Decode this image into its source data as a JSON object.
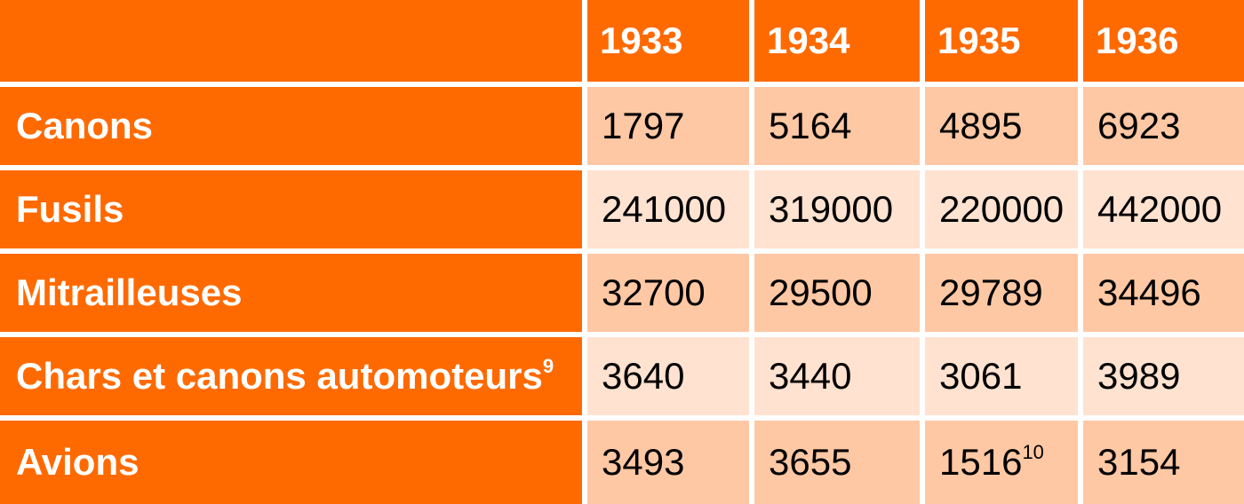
{
  "table": {
    "columns": [
      "",
      "1933",
      "1934",
      "1935",
      "1936"
    ],
    "rows": [
      {
        "label": "Canons",
        "label_sup": "",
        "values": [
          "1797",
          "5164",
          "4895",
          "6923"
        ],
        "value_sups": [
          "",
          "",
          "",
          ""
        ]
      },
      {
        "label": "Fusils",
        "label_sup": "",
        "values": [
          "241000",
          "319000",
          "220000",
          "442000"
        ],
        "value_sups": [
          "",
          "",
          "",
          ""
        ]
      },
      {
        "label": "Mitrailleuses",
        "label_sup": "",
        "values": [
          "32700",
          "29500",
          "29789",
          "34496"
        ],
        "value_sups": [
          "",
          "",
          "",
          ""
        ]
      },
      {
        "label": "Chars et canons automoteurs",
        "label_sup": "9",
        "values": [
          "3640",
          "3440",
          "3061",
          "3989"
        ],
        "value_sups": [
          "",
          "",
          "",
          ""
        ]
      },
      {
        "label": "Avions",
        "label_sup": "",
        "values": [
          "3493",
          "3655",
          "1516",
          "3154"
        ],
        "value_sups": [
          "",
          "",
          "10",
          ""
        ]
      }
    ]
  },
  "colors": {
    "header_bg": "#ff6a00",
    "row_odd_bg": "#ffc8a4",
    "row_even_bg": "#ffe2d0",
    "header_text": "#ffffff",
    "value_text": "#000000"
  }
}
